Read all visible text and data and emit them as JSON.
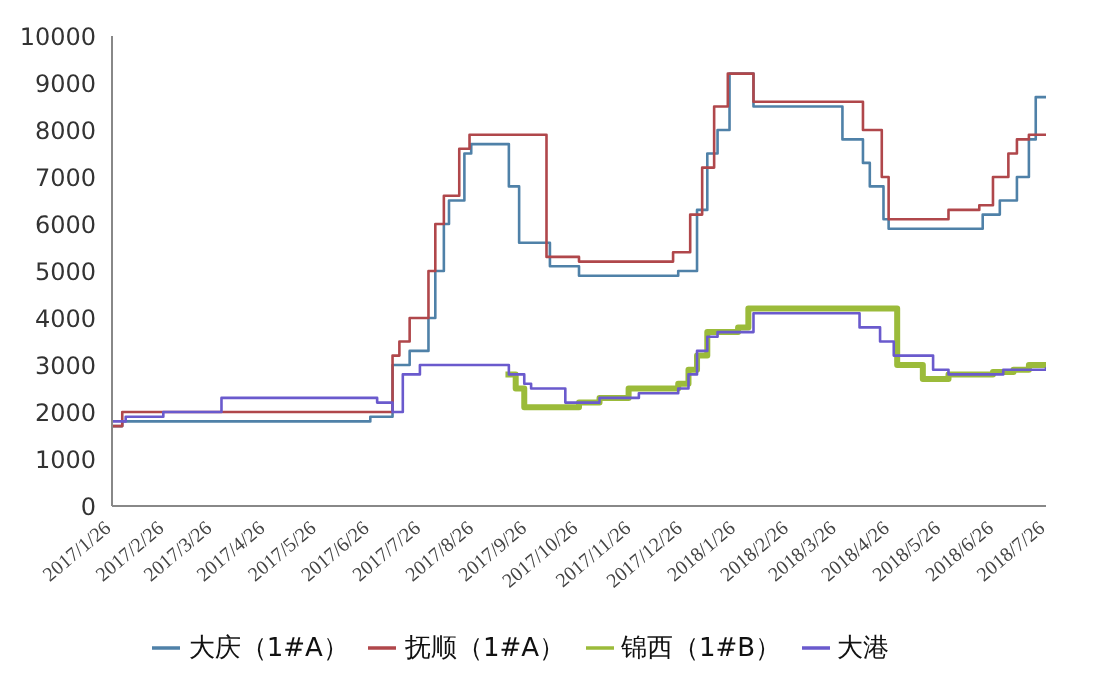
{
  "chart_data": {
    "type": "step",
    "legend": "bottom",
    "ylim": [
      0,
      10000
    ],
    "yticks": [
      0,
      1000,
      2000,
      3000,
      4000,
      5000,
      6000,
      7000,
      8000,
      9000,
      10000
    ],
    "xlim": [
      "2017-01-26",
      "2018-07-26"
    ],
    "xticks": [
      {
        "value": "2017-01-26",
        "label": "2017/1/26"
      },
      {
        "value": "2017-02-26",
        "label": "2017/2/26"
      },
      {
        "value": "2017-03-26",
        "label": "2017/3/26"
      },
      {
        "value": "2017-04-26",
        "label": "2017/4/26"
      },
      {
        "value": "2017-05-26",
        "label": "2017/5/26"
      },
      {
        "value": "2017-06-26",
        "label": "2017/6/26"
      },
      {
        "value": "2017-07-26",
        "label": "2017/7/26"
      },
      {
        "value": "2017-08-26",
        "label": "2017/8/26"
      },
      {
        "value": "2017-09-26",
        "label": "2017/9/26"
      },
      {
        "value": "2017-10-26",
        "label": "2017/10/26"
      },
      {
        "value": "2017-11-26",
        "label": "2017/11/26"
      },
      {
        "value": "2017-12-26",
        "label": "2017/12/26"
      },
      {
        "value": "2018-01-26",
        "label": "2018/1/26"
      },
      {
        "value": "2018-02-26",
        "label": "2018/2/26"
      },
      {
        "value": "2018-03-26",
        "label": "2018/3/26"
      },
      {
        "value": "2018-04-26",
        "label": "2018/4/26"
      },
      {
        "value": "2018-05-26",
        "label": "2018/5/26"
      },
      {
        "value": "2018-06-26",
        "label": "2018/6/26"
      },
      {
        "value": "2018-07-26",
        "label": "2018/7/26"
      }
    ],
    "series": [
      {
        "name": "大庆（1#A）",
        "color": "#4f81a8",
        "x": [
          "2017-01-26",
          "2017-02-01",
          "2017-06-26",
          "2017-07-09",
          "2017-07-19",
          "2017-07-30",
          "2017-08-03",
          "2017-08-08",
          "2017-08-11",
          "2017-08-20",
          "2017-08-24",
          "2017-09-15",
          "2017-09-21",
          "2017-10-09",
          "2017-10-26",
          "2017-12-23",
          "2018-01-03",
          "2018-01-09",
          "2018-01-15",
          "2018-01-22",
          "2018-02-05",
          "2018-03-29",
          "2018-04-10",
          "2018-04-14",
          "2018-04-22",
          "2018-04-25",
          "2018-06-19",
          "2018-06-29",
          "2018-07-09",
          "2018-07-16",
          "2018-07-20",
          "2018-07-26"
        ],
        "values": [
          1700,
          1800,
          1900,
          3000,
          3300,
          4000,
          5000,
          6000,
          6500,
          7500,
          7700,
          6800,
          5600,
          5100,
          4900,
          5000,
          6300,
          7500,
          8000,
          9200,
          8500,
          7800,
          7300,
          6800,
          6100,
          5900,
          6200,
          6500,
          7000,
          7800,
          8700,
          8700
        ]
      },
      {
        "name": "抚顺（1#A）",
        "color": "#b0474b",
        "x": [
          "2017-01-26",
          "2017-02-01",
          "2017-07-09",
          "2017-07-13",
          "2017-07-19",
          "2017-07-30",
          "2017-08-03",
          "2017-08-08",
          "2017-08-17",
          "2017-08-23",
          "2017-10-07",
          "2017-10-26",
          "2017-12-20",
          "2017-12-30",
          "2018-01-06",
          "2018-01-13",
          "2018-01-21",
          "2018-02-05",
          "2018-04-10",
          "2018-04-21",
          "2018-04-25",
          "2018-05-30",
          "2018-06-17",
          "2018-06-25",
          "2018-07-04",
          "2018-07-09",
          "2018-07-16",
          "2018-07-26"
        ],
        "values": [
          1700,
          2000,
          3200,
          3500,
          4000,
          5000,
          6000,
          6600,
          7600,
          7900,
          5300,
          5200,
          5400,
          6200,
          7200,
          8500,
          9200,
          8600,
          8000,
          7000,
          6100,
          6300,
          6400,
          7000,
          7500,
          7800,
          7900,
          7900
        ]
      },
      {
        "name": "锦西（1#B）",
        "color": "#9bbb3a",
        "x": [
          "2017-09-13",
          "2017-09-19",
          "2017-09-24",
          "2017-10-26",
          "2017-11-07",
          "2017-11-24",
          "2017-12-23",
          "2017-12-29",
          "2018-01-03",
          "2018-01-09",
          "2018-01-27",
          "2018-02-02",
          "2018-04-30",
          "2018-05-15",
          "2018-05-30",
          "2018-06-25",
          "2018-07-07",
          "2018-07-16",
          "2018-07-26"
        ],
        "values": [
          2800,
          2500,
          2100,
          2200,
          2300,
          2500,
          2600,
          2900,
          3200,
          3700,
          3800,
          4200,
          3000,
          2700,
          2800,
          2850,
          2900,
          3000,
          3000
        ]
      },
      {
        "name": "大港",
        "color": "#6a5acd",
        "x": [
          "2017-01-26",
          "2017-02-03",
          "2017-02-25",
          "2017-03-31",
          "2017-06-30",
          "2017-07-09",
          "2017-07-15",
          "2017-07-25",
          "2017-09-15",
          "2017-09-24",
          "2017-09-28",
          "2017-10-18",
          "2017-11-07",
          "2017-11-30",
          "2017-12-23",
          "2017-12-29",
          "2018-01-03",
          "2018-01-09",
          "2018-01-15",
          "2018-02-05",
          "2018-04-08",
          "2018-04-20",
          "2018-04-28",
          "2018-05-21",
          "2018-05-30",
          "2018-07-01",
          "2018-07-26"
        ],
        "values": [
          1800,
          1900,
          2000,
          2300,
          2200,
          2000,
          2800,
          3000,
          2800,
          2600,
          2500,
          2200,
          2300,
          2400,
          2500,
          2800,
          3300,
          3600,
          3700,
          4100,
          3800,
          3500,
          3200,
          2900,
          2800,
          2900,
          2950
        ]
      }
    ]
  }
}
